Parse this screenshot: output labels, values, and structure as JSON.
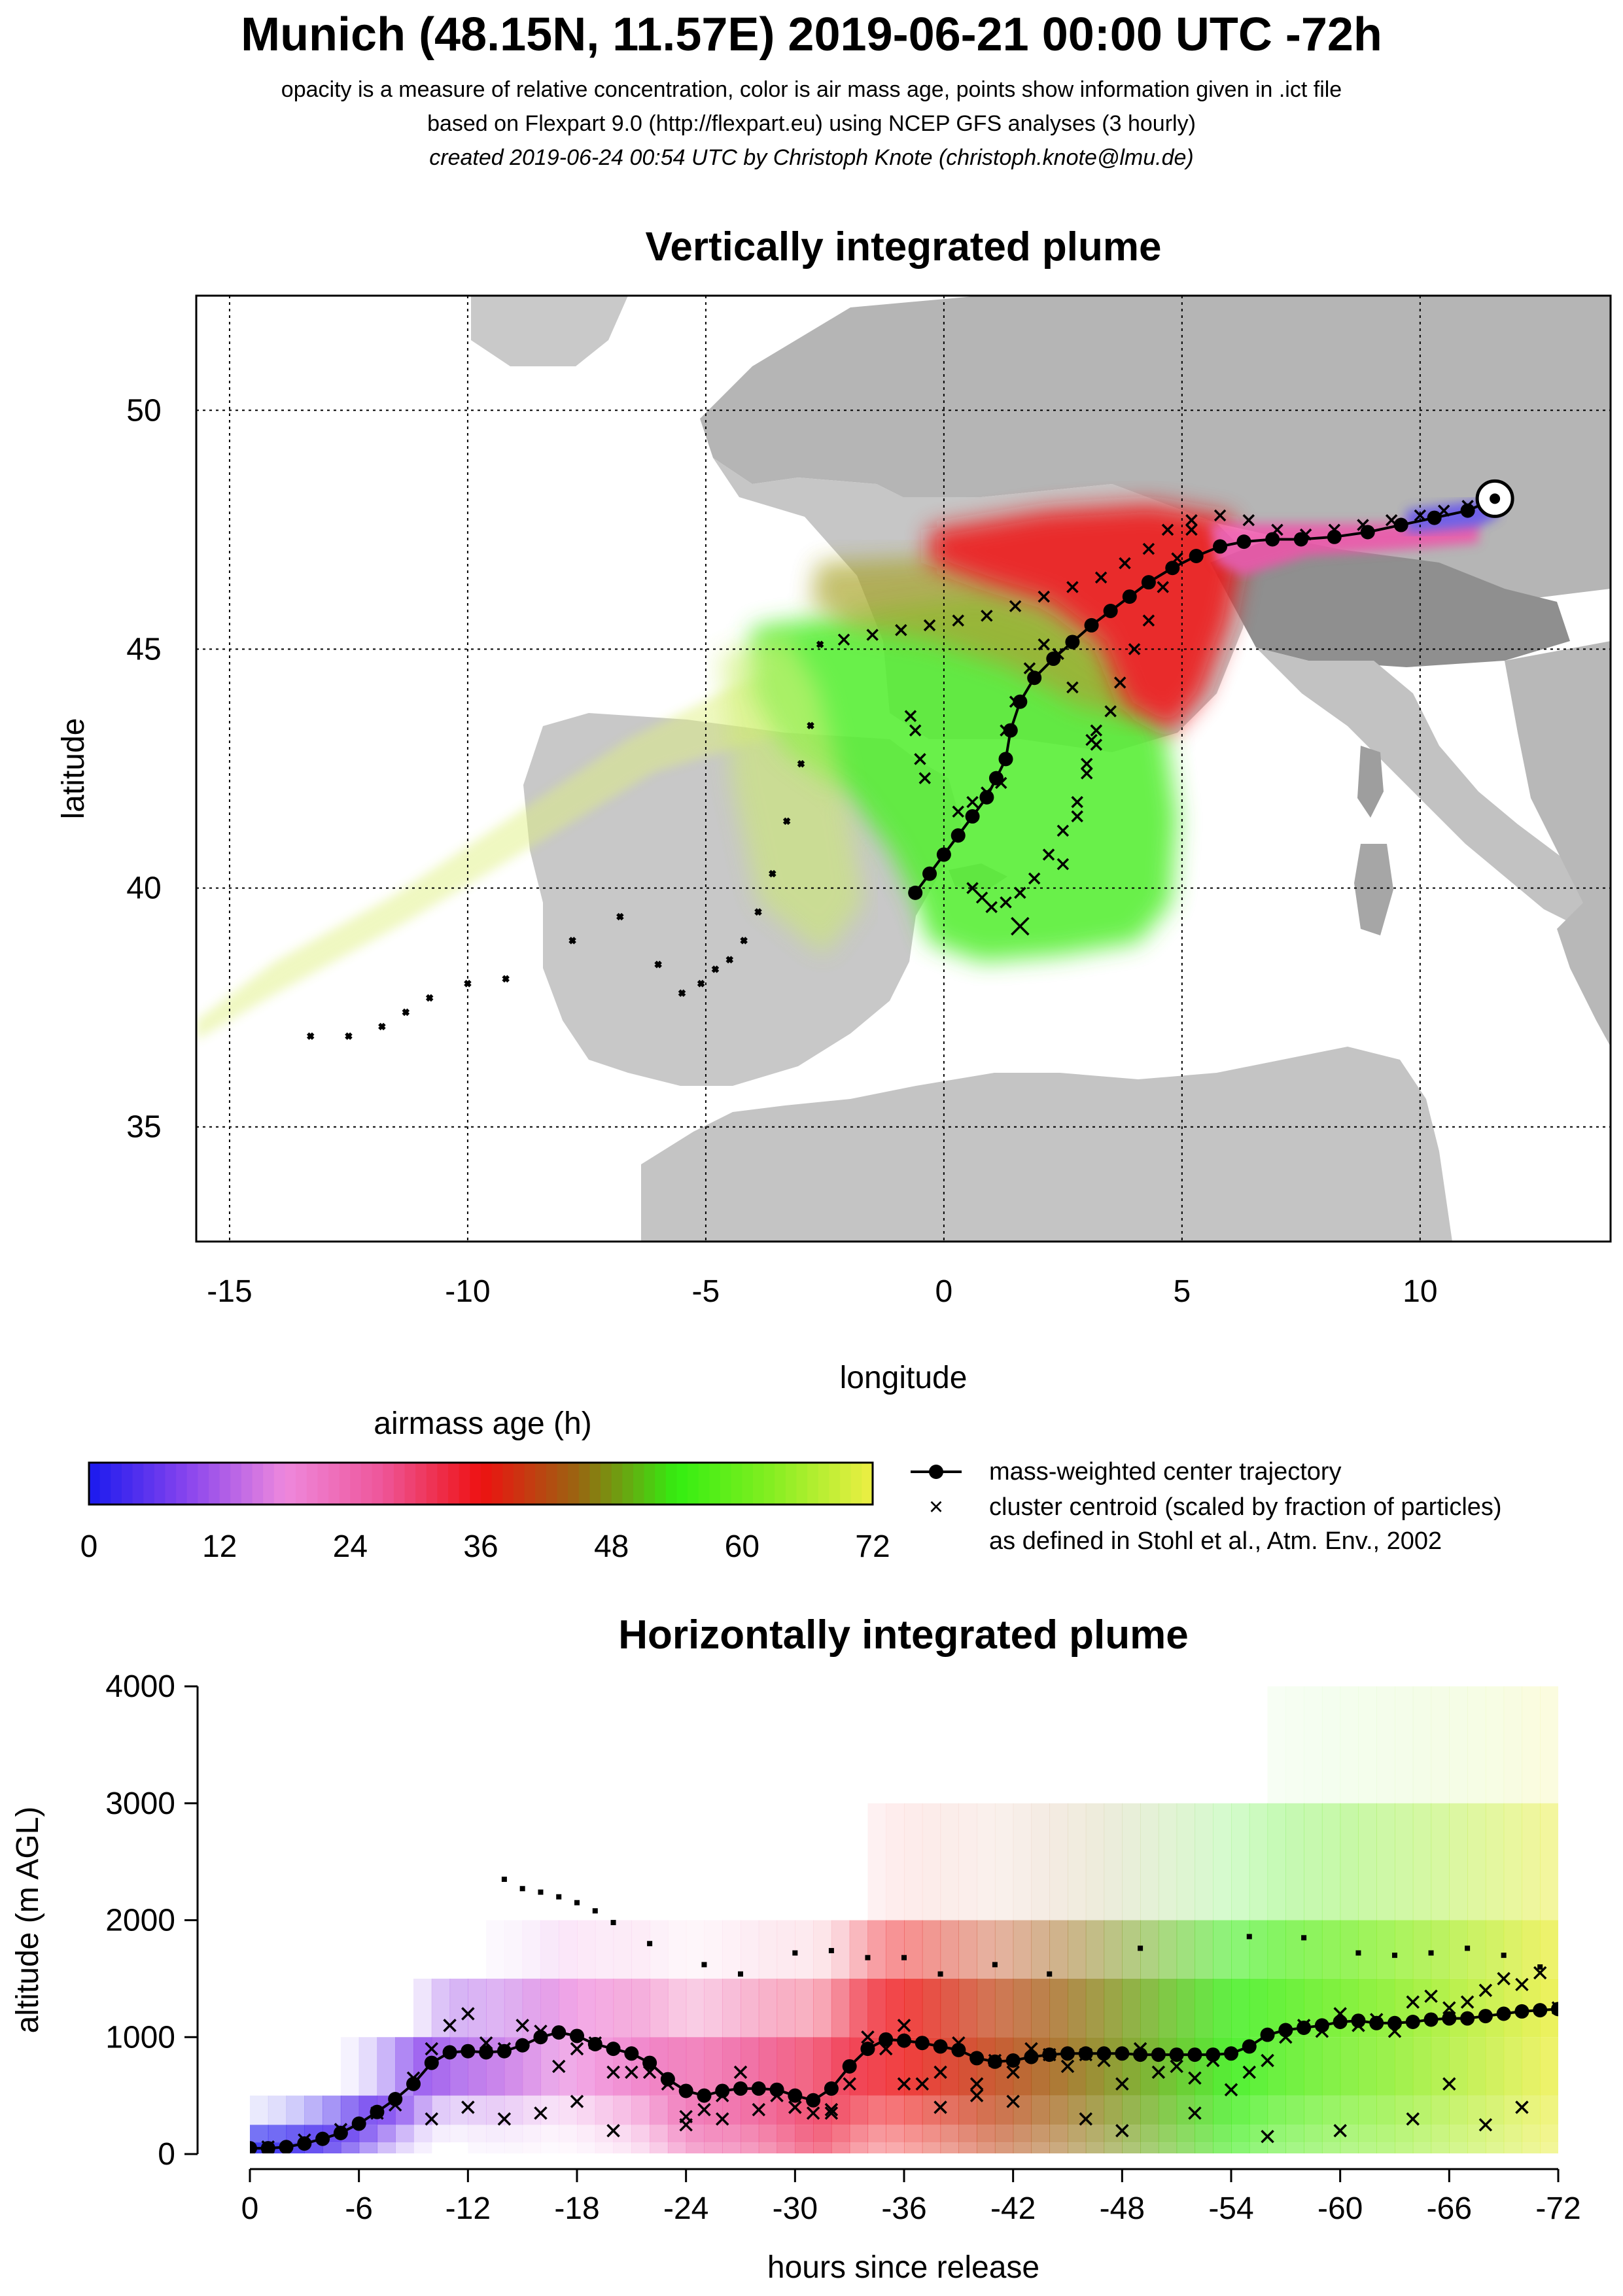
{
  "header": {
    "title": "Munich (48.15N, 11.57E) 2019-06-21 00:00 UTC -72h",
    "line1": "opacity is a measure of relative concentration, color is air mass age, points show information given in .ict file",
    "line2": "based on Flexpart 9.0 (http://flexpart.eu) using NCEP GFS analyses (3 hourly)",
    "line3": "created 2019-06-24 00:54 UTC by Christoph Knote (christoph.knote@lmu.de)"
  },
  "legend": {
    "colorbar_title": "airmass age (h)",
    "colorbar_ticks": [
      "0",
      "12",
      "24",
      "36",
      "48",
      "60",
      "72"
    ],
    "colorbar_stops": [
      "#1a1aee",
      "#8844ee",
      "#ee88dd",
      "#ee5599",
      "#ee1111",
      "#996611",
      "#33ee11",
      "#88ee22",
      "#eeee44"
    ],
    "traj_label": "mass-weighted center trajectory",
    "cluster_label": "cluster centroid (scaled by fraction of particles)",
    "cluster_label2": "as defined in Stohl et al., Atm. Env., 2002"
  },
  "chart_data": [
    {
      "type": "scatter",
      "title": "Vertically integrated plume",
      "xlabel": "longitude",
      "ylabel": "latitude",
      "xlim": [
        -15.7,
        14.0
      ],
      "ylim": [
        32.6,
        52.4
      ],
      "xticks": [
        "-15",
        "-10",
        "-5",
        "0",
        "5",
        "10"
      ],
      "yticks": [
        "35",
        "40",
        "45",
        "50"
      ],
      "grid": true,
      "release_point": {
        "lon": 11.57,
        "lat": 48.15
      },
      "trajectory": {
        "lon": [
          11.57,
          11.0,
          10.3,
          9.6,
          8.9,
          8.2,
          7.5,
          6.9,
          6.3,
          5.8,
          5.3,
          4.8,
          4.3,
          3.9,
          3.5,
          3.1,
          2.7,
          2.3,
          1.9,
          1.6,
          1.4,
          1.3,
          1.1,
          0.9,
          0.6,
          0.3,
          0.0,
          -0.3,
          -0.6
        ],
        "lat": [
          48.15,
          47.9,
          47.75,
          47.6,
          47.45,
          47.35,
          47.3,
          47.3,
          47.25,
          47.15,
          46.95,
          46.7,
          46.4,
          46.1,
          45.8,
          45.5,
          45.15,
          44.8,
          44.4,
          43.9,
          43.3,
          42.7,
          42.3,
          41.9,
          41.5,
          41.1,
          40.7,
          40.3,
          39.9
        ]
      },
      "clusters": {
        "lon": [
          11.0,
          10.5,
          10.0,
          9.4,
          8.8,
          8.2,
          7.6,
          7.0,
          6.4,
          5.8,
          5.2,
          4.7,
          4.3,
          3.8,
          3.3,
          2.7,
          2.1,
          1.5,
          0.9,
          0.3,
          -0.3,
          -0.9,
          -1.5,
          -2.1,
          -2.6,
          5.2,
          4.9,
          4.6,
          4.3,
          4.0,
          3.7,
          3.5,
          3.2,
          3.0,
          2.8,
          2.5,
          2.2,
          1.9,
          1.6,
          1.3,
          1.0,
          0.8,
          0.6,
          2.5,
          2.8,
          3.0,
          3.1,
          3.2,
          2.7,
          2.4,
          2.1,
          1.8,
          1.5,
          1.3,
          1.2,
          0.9,
          0.6,
          0.3,
          -0.4,
          -0.5,
          -0.6,
          -0.7,
          -2.8,
          -3.0,
          -3.3,
          -3.6,
          -3.9,
          -4.2,
          -4.5,
          -4.8,
          -5.1,
          -5.5,
          -6.0,
          -6.8,
          -7.8,
          -9.2,
          -10.0,
          -10.8,
          -11.3,
          -11.8,
          -12.5,
          -13.3,
          1.6
        ],
        "lat": [
          48.0,
          47.9,
          47.8,
          47.7,
          47.6,
          47.5,
          47.4,
          47.5,
          47.7,
          47.8,
          47.7,
          47.5,
          47.1,
          46.8,
          46.5,
          46.3,
          46.1,
          45.9,
          45.7,
          45.6,
          45.5,
          45.4,
          45.3,
          45.2,
          45.1,
          47.5,
          46.9,
          46.3,
          45.6,
          45.0,
          44.3,
          43.7,
          43.0,
          42.4,
          41.8,
          41.2,
          40.7,
          40.2,
          39.9,
          39.7,
          39.6,
          39.8,
          40.0,
          40.5,
          41.5,
          42.6,
          43.1,
          43.3,
          44.2,
          44.9,
          45.1,
          44.6,
          43.9,
          43.3,
          42.2,
          42.0,
          41.8,
          41.6,
          42.3,
          42.7,
          43.3,
          43.6,
          43.4,
          42.6,
          41.4,
          40.3,
          39.5,
          38.9,
          38.5,
          38.3,
          38.0,
          37.8,
          38.4,
          39.4,
          38.9,
          38.1,
          38.0,
          37.7,
          37.4,
          37.1,
          36.9,
          36.9,
          39.2
        ]
      }
    },
    {
      "type": "scatter",
      "title": "Horizontally integrated plume",
      "xlabel": "hours since release",
      "ylabel": "altitude (m AGL)",
      "xlim": [
        0,
        -72
      ],
      "ylim": [
        0,
        4000
      ],
      "xticks": [
        "0",
        "-6",
        "-12",
        "-18",
        "-24",
        "-30",
        "-36",
        "-42",
        "-48",
        "-54",
        "-60",
        "-66",
        "-72"
      ],
      "yticks": [
        "0",
        "1000",
        "2000",
        "3000",
        "4000"
      ],
      "trajectory": {
        "hours": [
          0,
          -1,
          -2,
          -3,
          -4,
          -5,
          -6,
          -7,
          -8,
          -9,
          -10,
          -11,
          -12,
          -13,
          -14,
          -15,
          -16,
          -17,
          -18,
          -19,
          -20,
          -21,
          -22,
          -23,
          -24,
          -25,
          -26,
          -27,
          -28,
          -29,
          -30,
          -31,
          -32,
          -33,
          -34,
          -35,
          -36,
          -37,
          -38,
          -39,
          -40,
          -41,
          -42,
          -43,
          -44,
          -45,
          -46,
          -47,
          -48,
          -49,
          -50,
          -51,
          -52,
          -53,
          -54,
          -55,
          -56,
          -57,
          -58,
          -59,
          -60,
          -61,
          -62,
          -63,
          -64,
          -65,
          -66,
          -67,
          -68,
          -69,
          -70,
          -71,
          -72
        ],
        "altitude": [
          50,
          50,
          60,
          90,
          130,
          180,
          260,
          360,
          470,
          600,
          780,
          870,
          880,
          870,
          880,
          930,
          1000,
          1040,
          1010,
          940,
          900,
          860,
          780,
          640,
          540,
          500,
          540,
          560,
          560,
          550,
          500,
          460,
          560,
          750,
          900,
          980,
          970,
          950,
          920,
          890,
          820,
          790,
          800,
          830,
          850,
          860,
          860,
          860,
          860,
          850,
          850,
          850,
          850,
          850,
          860,
          920,
          1020,
          1060,
          1080,
          1100,
          1130,
          1140,
          1120,
          1120,
          1130,
          1150,
          1160,
          1160,
          1180,
          1200,
          1220,
          1230,
          1240
        ]
      },
      "clusters": {
        "hours": [
          -1,
          -3,
          -5,
          -7,
          -8,
          -9,
          -10,
          -11,
          -12,
          -13,
          -14,
          -15,
          -16,
          -17,
          -18,
          -19,
          -20,
          -21,
          -22,
          -23,
          -24,
          -25,
          -26,
          -27,
          -28,
          -29,
          -30,
          -31,
          -32,
          -33,
          -34,
          -35,
          -36,
          -37,
          -38,
          -39,
          -40,
          -41,
          -42,
          -43,
          -44,
          -45,
          -46,
          -47,
          -48,
          -49,
          -50,
          -51,
          -52,
          -53,
          -54,
          -55,
          -56,
          -57,
          -58,
          -59,
          -60,
          -61,
          -62,
          -63,
          -64,
          -65,
          -66,
          -67,
          -68,
          -69,
          -70,
          -71,
          -72,
          -10,
          -12,
          -14,
          -16,
          -18,
          -20,
          -24,
          -26,
          -30,
          -32,
          -36,
          -38,
          -40,
          -42,
          -46,
          -48,
          -52,
          -56,
          -60,
          -64,
          -66,
          -68,
          -70
        ],
        "altitude": [
          60,
          120,
          210,
          350,
          420,
          650,
          900,
          1100,
          1200,
          950,
          900,
          1100,
          1050,
          750,
          900,
          950,
          700,
          700,
          700,
          600,
          320,
          380,
          500,
          700,
          380,
          500,
          400,
          350,
          380,
          600,
          1000,
          900,
          1100,
          600,
          700,
          950,
          600,
          800,
          700,
          900,
          850,
          750,
          850,
          800,
          600,
          900,
          700,
          750,
          650,
          800,
          550,
          700,
          800,
          1000,
          1100,
          1050,
          1200,
          1100,
          1150,
          1050,
          1300,
          1350,
          1250,
          1300,
          1400,
          1500,
          1450,
          1550,
          1250,
          300,
          400,
          300,
          350,
          450,
          200,
          250,
          300,
          400,
          350,
          600,
          400,
          500,
          450,
          300,
          200,
          350,
          150,
          200,
          300,
          600,
          250,
          400
        ]
      },
      "upper_points": {
        "hours": [
          -14,
          -15,
          -16,
          -17,
          -18,
          -19,
          -20,
          -22,
          -25,
          -27,
          -30,
          -32,
          -34,
          -36,
          -38,
          -41,
          -44,
          -49,
          -55,
          -58,
          -61,
          -63,
          -65,
          -67,
          -69,
          -71
        ],
        "altitude": [
          2350,
          2270,
          2240,
          2200,
          2150,
          2080,
          1980,
          1800,
          1620,
          1540,
          1720,
          1740,
          1680,
          1680,
          1540,
          1620,
          1540,
          1760,
          1860,
          1850,
          1720,
          1700,
          1720,
          1760,
          1700,
          1600
        ]
      }
    }
  ]
}
